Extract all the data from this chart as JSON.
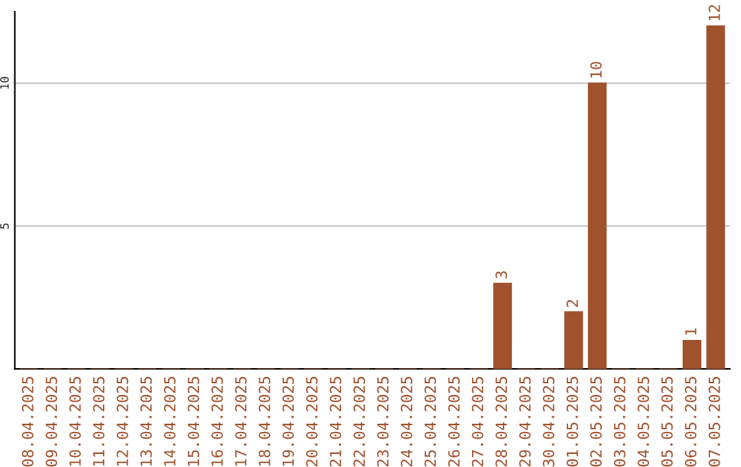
{
  "chart_data": {
    "type": "bar",
    "categories": [
      "08.04.2025",
      "09.04.2025",
      "10.04.2025",
      "11.04.2025",
      "12.04.2025",
      "13.04.2025",
      "14.04.2025",
      "15.04.2025",
      "16.04.2025",
      "17.04.2025",
      "18.04.2025",
      "19.04.2025",
      "20.04.2025",
      "21.04.2025",
      "22.04.2025",
      "23.04.2025",
      "24.04.2025",
      "25.04.2025",
      "26.04.2025",
      "27.04.2025",
      "28.04.2025",
      "29.04.2025",
      "30.04.2025",
      "01.05.2025",
      "02.05.2025",
      "03.05.2025",
      "04.05.2025",
      "05.05.2025",
      "06.05.2025",
      "07.05.2025"
    ],
    "values": [
      0,
      0,
      0,
      0,
      0,
      0,
      0,
      0,
      0,
      0,
      0,
      0,
      0,
      0,
      0,
      0,
      0,
      0,
      0,
      0,
      3,
      0,
      0,
      2,
      10,
      0,
      0,
      0,
      1,
      12
    ],
    "value_labels": [
      null,
      null,
      null,
      null,
      null,
      null,
      null,
      null,
      null,
      null,
      null,
      null,
      null,
      null,
      null,
      null,
      null,
      null,
      null,
      null,
      "3",
      null,
      null,
      "2",
      "10",
      null,
      null,
      null,
      "1",
      "12"
    ],
    "color": "#a0522d",
    "ylim": [
      0,
      12.5
    ],
    "yticks": [
      5,
      10
    ],
    "grid": "y"
  }
}
